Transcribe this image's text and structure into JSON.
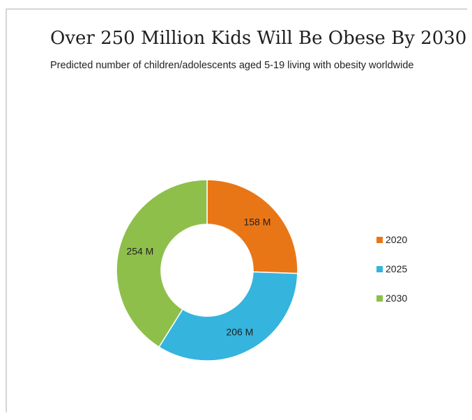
{
  "chart_data": {
    "type": "pie",
    "title": "Over 250 Million Kids Will Be Obese By 2030",
    "subtitle": "Predicted number of children/adolescents aged 5-19 living with obesity worldwide",
    "categories": [
      "2020",
      "2025",
      "2030"
    ],
    "values": [
      158,
      206,
      254
    ],
    "value_labels": [
      "158 M",
      "206 M",
      "254 M"
    ],
    "colors": [
      "#e97616",
      "#35b4dd",
      "#8fbf4b"
    ],
    "style": "donut",
    "legend_position": "right"
  }
}
